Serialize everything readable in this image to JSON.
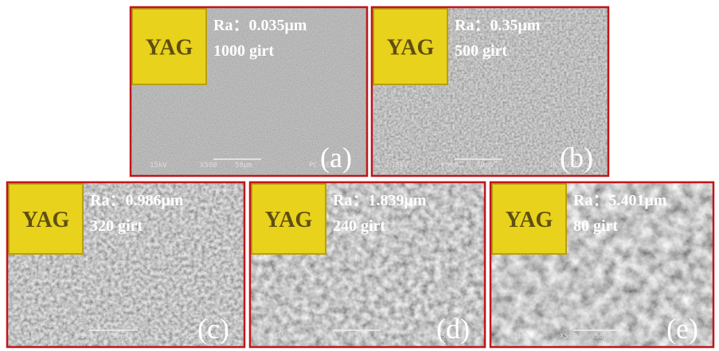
{
  "panels": [
    {
      "label": "(a)",
      "yag": "YAG",
      "ra": "Ra：0.035μm",
      "grit": "1000 girt",
      "sem": {
        "voltage": "15kV",
        "magnification": "X500",
        "scale": "50μm",
        "instrument": "PC-SEM"
      }
    },
    {
      "label": "(b)",
      "yag": "YAG",
      "ra": "Ra：0.35μm",
      "grit": "500 girt",
      "sem": {
        "voltage": "15kV",
        "magnification": "X500",
        "scale": "50μm",
        "instrument": "PC-SEM"
      }
    },
    {
      "label": "(c)",
      "yag": "YAG",
      "ra": "Ra：0.986μm",
      "grit": "320 girt",
      "sem": {
        "voltage": "15kV",
        "magnification": "X500",
        "scale": "50μm",
        "instrument": "PC-SEM"
      }
    },
    {
      "label": "(d)",
      "yag": "YAG",
      "ra": "Ra：1.839μm",
      "grit": "240 girt",
      "sem": {
        "voltage": "15kV",
        "magnification": "X500",
        "scale": "50μm",
        "instrument": "PC-SEM"
      }
    },
    {
      "label": "(e)",
      "yag": "YAG",
      "ra": "Ra：5.401μm",
      "grit": "80 girt",
      "sem": {
        "voltage": "15kV",
        "magnification": "X500",
        "scale": "50μm",
        "instrument": "PC-SEM"
      }
    }
  ]
}
